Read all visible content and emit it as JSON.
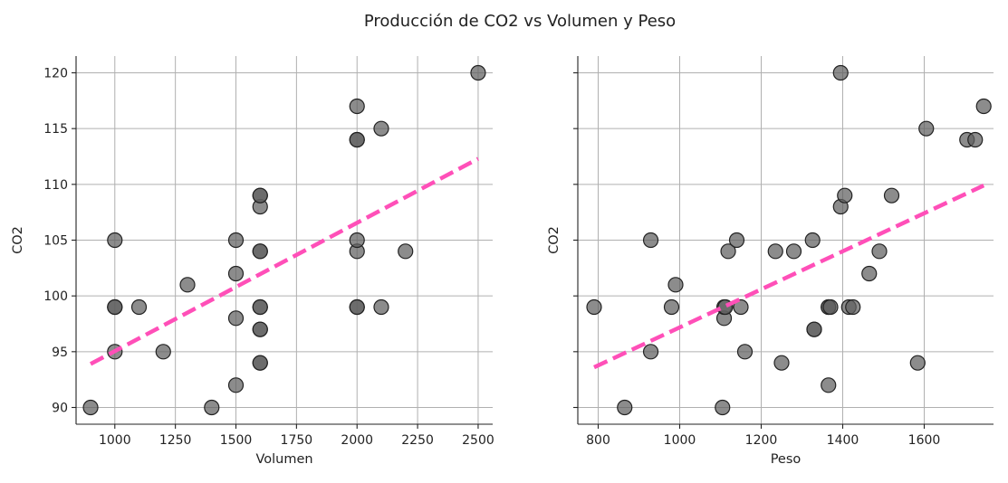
{
  "figure": {
    "title": "Producción de CO2 vs Volumen y Peso"
  },
  "colors": {
    "point_fill": "#5f5f5f",
    "point_edge": "#222222",
    "trend": "#ff4fb8",
    "grid": "#b0b0b0"
  },
  "chart_data": [
    {
      "type": "scatter",
      "xlabel": "Volumen",
      "ylabel": "CO2",
      "xlim": [
        840,
        2560
      ],
      "ylim": [
        88.5,
        121.5
      ],
      "xticks": [
        1000,
        1250,
        1500,
        1750,
        2000,
        2250,
        2500
      ],
      "yticks": [
        90,
        95,
        100,
        105,
        110,
        115,
        120
      ],
      "grid": true,
      "x": [
        900,
        1000,
        1000,
        1000,
        1000,
        1100,
        1200,
        1300,
        1400,
        1500,
        1500,
        1500,
        1500,
        1600,
        1600,
        1600,
        1600,
        1600,
        1600,
        1600,
        1600,
        1600,
        1600,
        1600,
        2000,
        2000,
        2000,
        2000,
        2000,
        2000,
        2000,
        2100,
        2100,
        2200,
        2500
      ],
      "y": [
        90,
        95,
        99,
        99,
        105,
        99,
        95,
        101,
        90,
        92,
        98,
        102,
        105,
        94,
        94,
        97,
        97,
        99,
        99,
        104,
        104,
        108,
        109,
        109,
        99,
        99,
        104,
        105,
        114,
        114,
        117,
        99,
        115,
        104,
        120
      ],
      "trend": {
        "x": [
          900,
          2500
        ],
        "y": [
          93.9,
          112.3
        ]
      }
    },
    {
      "type": "scatter",
      "xlabel": "Peso",
      "ylabel": "CO2",
      "xlim": [
        750,
        1770
      ],
      "ylim": [
        88.5,
        121.5
      ],
      "xticks": [
        800,
        1000,
        1200,
        1400,
        1600
      ],
      "yticks": [
        90,
        95,
        100,
        105,
        110,
        115,
        120
      ],
      "grid": true,
      "x": [
        790,
        865,
        929,
        929,
        980,
        990,
        1105,
        1109,
        1109,
        1112,
        1119,
        1140,
        1150,
        1160,
        1235,
        1250,
        1280,
        1326,
        1330,
        1330,
        1365,
        1365,
        1365,
        1370,
        1395,
        1395,
        1405,
        1415,
        1425,
        1465,
        1490,
        1520,
        1584,
        1605,
        1705,
        1725,
        1746
      ],
      "y": [
        99,
        90,
        95,
        105,
        99,
        101,
        90,
        98,
        99,
        99,
        104,
        105,
        99,
        95,
        104,
        94,
        104,
        105,
        97,
        97,
        92,
        99,
        99,
        99,
        108,
        120,
        109,
        99,
        99,
        102,
        104,
        109,
        94,
        115,
        114,
        114,
        117
      ],
      "trend": {
        "x": [
          790,
          1746
        ],
        "y": [
          93.6,
          109.9
        ]
      }
    }
  ]
}
